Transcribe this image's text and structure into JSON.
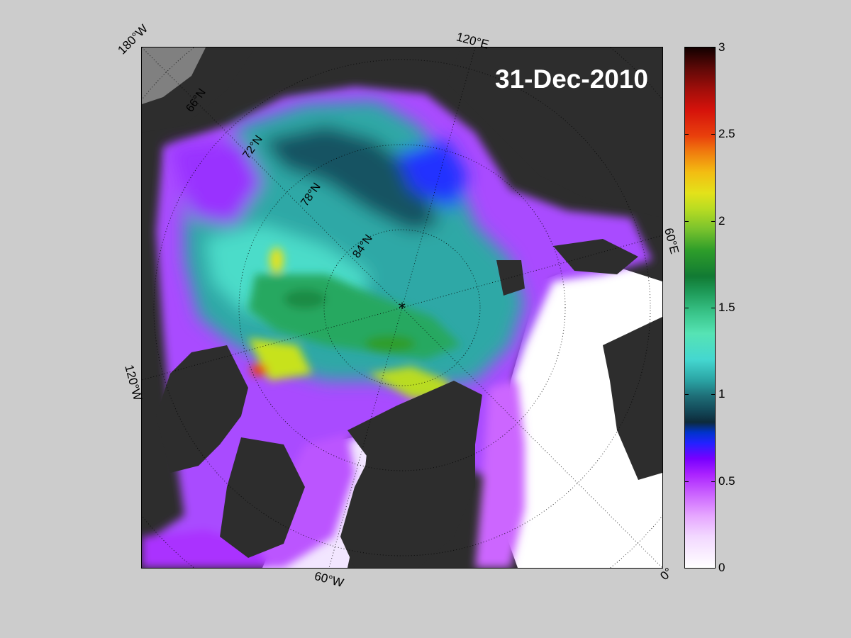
{
  "map": {
    "date_label": "31-Dec-2010",
    "lon_labels": {
      "lon_180w": "180°W",
      "lon_120e": "120°E",
      "lon_60e": "60°E",
      "lon_120w": "120°W",
      "lon_60w": "60°W",
      "lon_0": "0°"
    },
    "lat_labels": {
      "lat_66": "66°N",
      "lat_72": "72°N",
      "lat_78": "78°N",
      "lat_84": "84°N"
    },
    "pole_marker": "*"
  },
  "colorbar": {
    "ticks": [
      "3",
      "2.5",
      "2",
      "1.5",
      "1",
      "0.5",
      "0"
    ],
    "min": 0,
    "max": 3
  },
  "colors": {
    "background": "#cccccc",
    "land": "#2d2d2d",
    "open_water": "#ffffff",
    "thin_ice": "#cc66ff",
    "medium_ice": "#2aa3a3",
    "thick_ice": "#1e9a58"
  }
}
